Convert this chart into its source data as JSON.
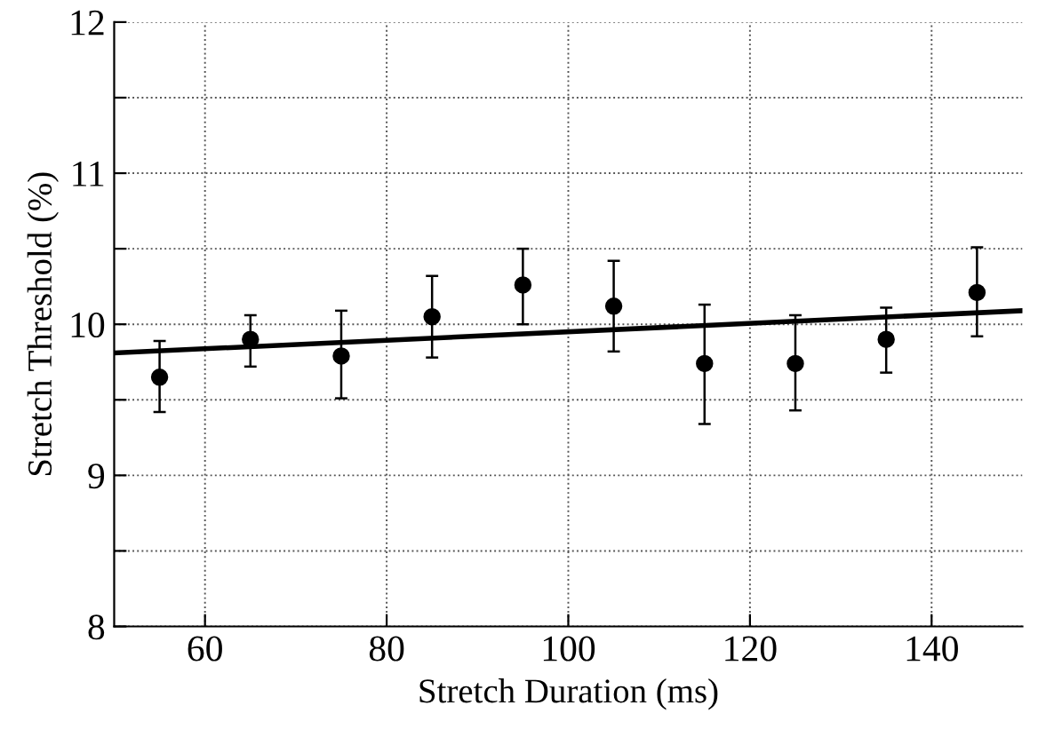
{
  "chart_data": {
    "type": "scatter",
    "xlabel": "Stretch Duration (ms)",
    "ylabel": "Stretch Threshold (%)",
    "xlim": [
      50,
      150
    ],
    "xticks": [
      60,
      80,
      100,
      120,
      140
    ],
    "ylim": [
      8,
      12
    ],
    "yticks": [
      8,
      {
        "value": 8.5,
        "label": null
      },
      9,
      {
        "value": 9.5,
        "label": null
      },
      10,
      {
        "value": 10.5,
        "label": null
      },
      11,
      {
        "value": 11.5,
        "label": null
      },
      12
    ],
    "grid": true,
    "series": [
      {
        "marker": "circle",
        "color": "#000000",
        "x": [
          55,
          65,
          75,
          85,
          95,
          105,
          115,
          125,
          135,
          145
        ],
        "values": [
          9.65,
          9.9,
          9.79,
          10.05,
          10.26,
          10.12,
          9.74,
          9.74,
          9.9,
          10.21
        ],
        "errors": [
          [
            9.42,
            9.89
          ],
          [
            9.72,
            10.06
          ],
          [
            9.51,
            10.09
          ],
          [
            9.78,
            10.32
          ],
          [
            10.0,
            10.5
          ],
          [
            9.82,
            10.42
          ],
          [
            9.34,
            10.13
          ],
          [
            9.43,
            10.06
          ],
          [
            9.68,
            10.11
          ],
          [
            9.92,
            10.51
          ]
        ]
      },
      {
        "type": "line",
        "color": "#000000",
        "x": [
          50,
          150
        ],
        "values": [
          9.81,
          10.09
        ],
        "line_style": "solid"
      }
    ]
  }
}
